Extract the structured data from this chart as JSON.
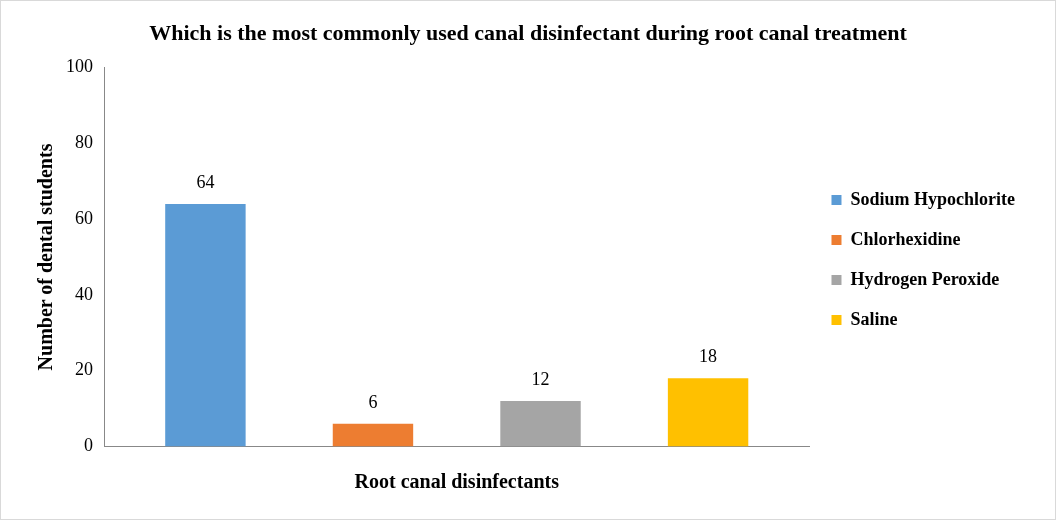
{
  "chart_data": {
    "type": "bar",
    "title": "Which is the most commonly used canal disinfectant during root canal treatment",
    "xlabel": "Root canal disinfectants",
    "ylabel": "Number of dental students",
    "categories": [
      null
    ],
    "series": [
      {
        "name": "Sodium Hypochlorite",
        "color": "#5b9bd5",
        "values": [
          64
        ]
      },
      {
        "name": "Chlorhexidine",
        "color": "#ed7d31",
        "values": [
          6
        ]
      },
      {
        "name": "Hydrogen Peroxide",
        "color": "#a5a5a5",
        "values": [
          12
        ]
      },
      {
        "name": "Saline",
        "color": "#ffc000",
        "values": [
          18
        ]
      }
    ],
    "ylim": [
      0,
      100
    ],
    "yticks": [
      0,
      20,
      40,
      60,
      80,
      100
    ],
    "grid": false,
    "legend": "right",
    "data_labels": true
  }
}
